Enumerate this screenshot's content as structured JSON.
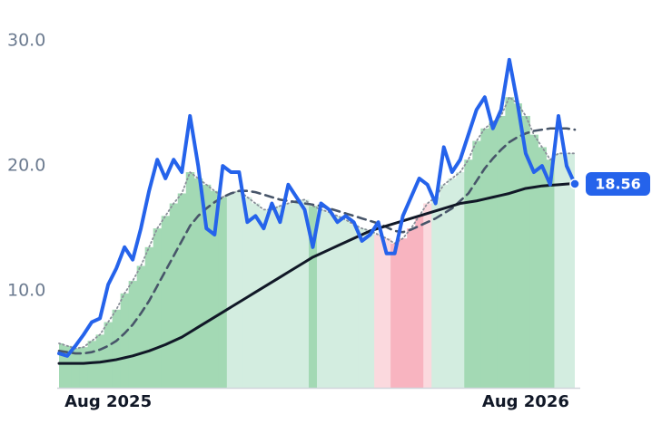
{
  "chart_data": {
    "type": "line",
    "categories": [
      null,
      null,
      null,
      null,
      null,
      null,
      "Aug 2025",
      null,
      null,
      null,
      null,
      null,
      null,
      null,
      null,
      null,
      null,
      null,
      null,
      null,
      null,
      null,
      null,
      null,
      null,
      null,
      null,
      null,
      null,
      null,
      null,
      null,
      null,
      null,
      null,
      null,
      null,
      null,
      null,
      null,
      null,
      null,
      null,
      null,
      null,
      null,
      null,
      null,
      null,
      null,
      null,
      null,
      null,
      null,
      null,
      null,
      null,
      "Aug 2026",
      null,
      null,
      null,
      null,
      null,
      null
    ],
    "ylim": [
      2.25,
      31.1
    ],
    "yticks": [
      {
        "value": 10,
        "label": "10.0"
      },
      {
        "value": 20,
        "label": "20.0"
      },
      {
        "value": 30,
        "label": "30.0"
      }
    ],
    "grid": false,
    "series": [
      {
        "color": "#8a8f99",
        "style": "dotted",
        "fill_colors": [
          "#a3d9b4",
          "#a3d9b4",
          "#a3d9b4",
          "#a3d9b4",
          "#a3d9b4",
          "#a3d9b4",
          "#a3d9b4",
          "#a3d9b4",
          "#a3d9b4",
          "#a3d9b4",
          "#a3d9b4",
          "#a3d9b4",
          "#a3d9b4",
          "#a3d9b4",
          "#a3d9b4",
          "#a3d9b4",
          "#a3d9b4",
          "#a3d9b4",
          "#a3d9b4",
          "#a3d9b4",
          "#a3d9b4",
          "#d3ede0",
          "#d3ede0",
          "#d3ede0",
          "#d3ede0",
          "#d3ede0",
          "#d3ede0",
          "#d3ede0",
          "#d3ede0",
          "#d3ede0",
          "#d3ede0",
          "#a3d9b4",
          "#d3ede0",
          "#d3ede0",
          "#d3ede0",
          "#d3ede0",
          "#d3ede0",
          "#d3ede0",
          "#d3ede0",
          "#fbd9de",
          "#fbd9de",
          "#f8b4c0",
          "#f8b4c0",
          "#f8b4c0",
          "#f8b4c0",
          "#fbd9de",
          "#d3ede0",
          "#d3ede0",
          "#d3ede0",
          "#d3ede0",
          "#a3d9b4",
          "#a3d9b4",
          "#a3d9b4",
          "#a3d9b4",
          "#a3d9b4",
          "#a3d9b4",
          "#a3d9b4",
          "#a3d9b4",
          "#a3d9b4",
          "#a3d9b4",
          "#a3d9b4",
          "#d3ede0",
          "#d3ede0",
          "#d3ede0"
        ],
        "values": [
          5.8,
          5.6,
          5.4,
          5.5,
          6,
          6.5,
          7.5,
          8.5,
          9.8,
          10.8,
          12,
          13.5,
          15,
          16,
          17,
          17.8,
          19.5,
          19,
          18.5,
          18,
          17.5,
          17.8,
          18,
          17.5,
          17,
          16.5,
          16.5,
          16.8,
          17,
          17.2,
          17.3,
          16.8,
          16.5,
          16.3,
          16,
          15.7,
          15.3,
          15,
          14.8,
          14.5,
          14.2,
          13.8,
          14.2,
          15,
          16,
          17,
          17.5,
          18.5,
          19,
          19.5,
          20.5,
          22,
          23,
          23.5,
          24,
          25.5,
          25,
          24,
          22.5,
          21.5,
          20.5,
          21,
          21,
          21
        ]
      },
      {
        "color": "#475569",
        "style": "dashed",
        "values": [
          5.2,
          5.1,
          5,
          5,
          5.1,
          5.3,
          5.6,
          6,
          6.6,
          7.3,
          8.2,
          9.2,
          10.4,
          11.6,
          12.8,
          14,
          15.2,
          16,
          16.6,
          17.1,
          17.5,
          17.8,
          18,
          18,
          17.9,
          17.7,
          17.5,
          17.3,
          17.2,
          17.1,
          17,
          16.9,
          16.8,
          16.6,
          16.4,
          16.2,
          16,
          15.8,
          15.6,
          15.4,
          15.1,
          14.8,
          14.7,
          14.9,
          15.2,
          15.5,
          15.8,
          16.2,
          16.6,
          17.2,
          17.8,
          18.8,
          19.8,
          20.6,
          21.3,
          21.9,
          22.3,
          22.6,
          22.8,
          22.9,
          23,
          23,
          23,
          22.9
        ]
      },
      {
        "color": "#111827",
        "style": "solid",
        "values": [
          4.2,
          4.2,
          4.2,
          4.2,
          4.25,
          4.3,
          4.4,
          4.5,
          4.65,
          4.8,
          5,
          5.2,
          5.45,
          5.7,
          6,
          6.3,
          6.7,
          7.1,
          7.5,
          7.9,
          8.3,
          8.7,
          9.1,
          9.5,
          9.9,
          10.3,
          10.7,
          11.1,
          11.5,
          11.9,
          12.3,
          12.7,
          13,
          13.3,
          13.6,
          13.9,
          14.2,
          14.5,
          14.8,
          15,
          15.2,
          15.4,
          15.6,
          15.8,
          16,
          16.2,
          16.4,
          16.6,
          16.8,
          17,
          17.1,
          17.2,
          17.35,
          17.5,
          17.65,
          17.8,
          18,
          18.2,
          18.3,
          18.4,
          18.45,
          18.5,
          18.55,
          18.6
        ]
      },
      {
        "color": "#2563eb",
        "style": "solid",
        "last_label": true,
        "values": [
          5,
          4.8,
          5.6,
          6.5,
          7.5,
          7.8,
          10.5,
          11.8,
          13.5,
          12.5,
          15,
          18,
          20.5,
          19,
          20.5,
          19.5,
          24,
          20,
          15,
          14.5,
          20,
          19.5,
          19.5,
          15.5,
          16,
          15,
          17,
          15.5,
          18.5,
          17.5,
          16.5,
          13.5,
          17,
          16.5,
          15.5,
          16,
          15.5,
          14,
          14.5,
          15.5,
          13,
          13,
          16,
          17.5,
          19,
          18.5,
          17,
          21.5,
          19.5,
          20.5,
          22.5,
          24.5,
          25.5,
          23,
          24.5,
          28.5,
          25,
          21,
          19.5,
          20,
          18.5,
          24,
          20,
          18.56
        ]
      }
    ]
  }
}
